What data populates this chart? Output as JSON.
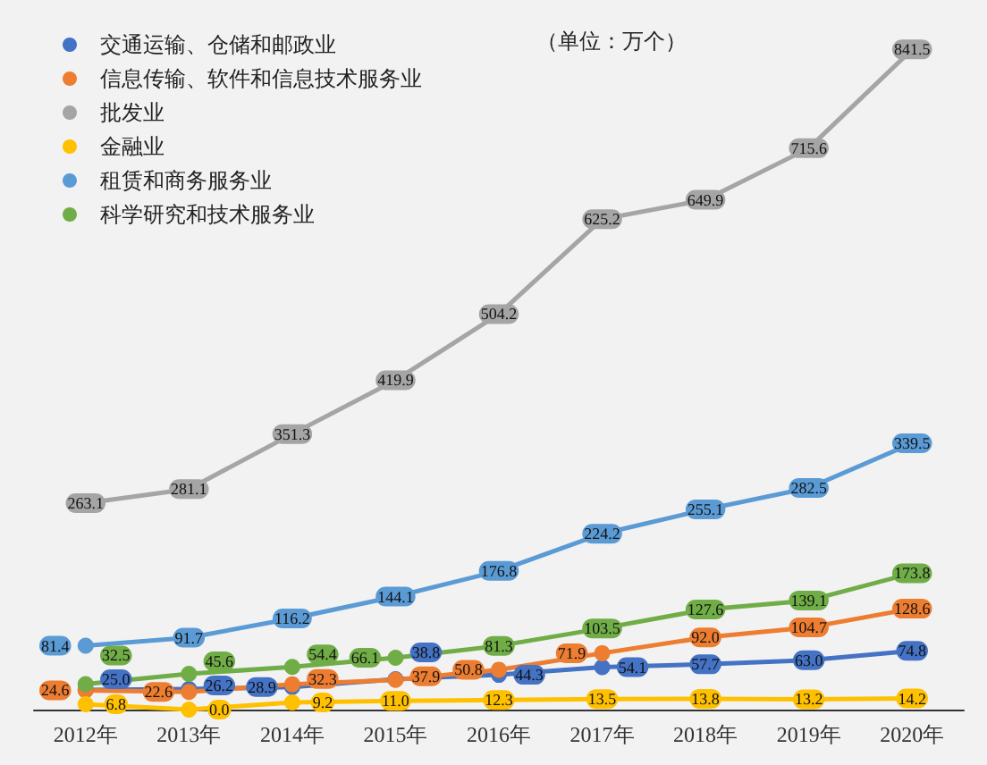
{
  "chart_data": {
    "type": "line",
    "categories": [
      "2012年",
      "2013年",
      "2014年",
      "2015年",
      "2016年",
      "2017年",
      "2018年",
      "2019年",
      "2020年"
    ],
    "series": [
      {
        "name": "交通运输、仓储和邮政业",
        "color": "#4472c4",
        "values": [
          25.0,
          26.2,
          28.9,
          38.8,
          44.3,
          54.1,
          57.7,
          63.0,
          74.8
        ],
        "value_labels": [
          "25.0",
          "26.2",
          "28.9",
          "38.8",
          "44.3",
          "54.1",
          "57.7",
          "63.0",
          "74.8"
        ]
      },
      {
        "name": "信息传输、软件和信息技术服务业",
        "color": "#ed7d31",
        "values": [
          24.6,
          22.6,
          32.3,
          37.9,
          50.8,
          71.9,
          92.0,
          104.7,
          128.6
        ],
        "value_labels": [
          "24.6",
          "22.6",
          "32.3",
          "37.9",
          "50.8",
          "71.9",
          "92.0",
          "104.7",
          "128.6"
        ]
      },
      {
        "name": "批发业",
        "color": "#a5a5a5",
        "values": [
          263.1,
          281.1,
          351.3,
          419.9,
          504.2,
          625.2,
          649.9,
          715.6,
          841.5
        ]
      },
      {
        "name": "金融业",
        "color": "#ffc000",
        "values": [
          6.8,
          0.0,
          9.2,
          11.0,
          12.3,
          13.5,
          13.8,
          13.2,
          14.2
        ],
        "value_labels": [
          "6.8",
          "0.0",
          "9.2",
          "11.0",
          "12.3",
          "13.5",
          "13.8",
          "13.2",
          "14.2"
        ]
      },
      {
        "name": "租赁和商务服务业",
        "color": "#5b9bd5",
        "values": [
          81.4,
          91.7,
          116.2,
          144.1,
          176.8,
          224.2,
          255.1,
          282.5,
          339.5
        ]
      },
      {
        "name": "科学研究和技术服务业",
        "color": "#70ad47",
        "values": [
          32.5,
          45.6,
          54.4,
          66.1,
          81.3,
          103.5,
          127.6,
          139.1,
          173.8
        ]
      }
    ],
    "ylim": [
      0,
      900
    ],
    "data_labels": true,
    "legend": "top left",
    "grid": false,
    "marker": "circle",
    "line_style": "solid",
    "annotations": [
      "（单位：万个）"
    ]
  }
}
